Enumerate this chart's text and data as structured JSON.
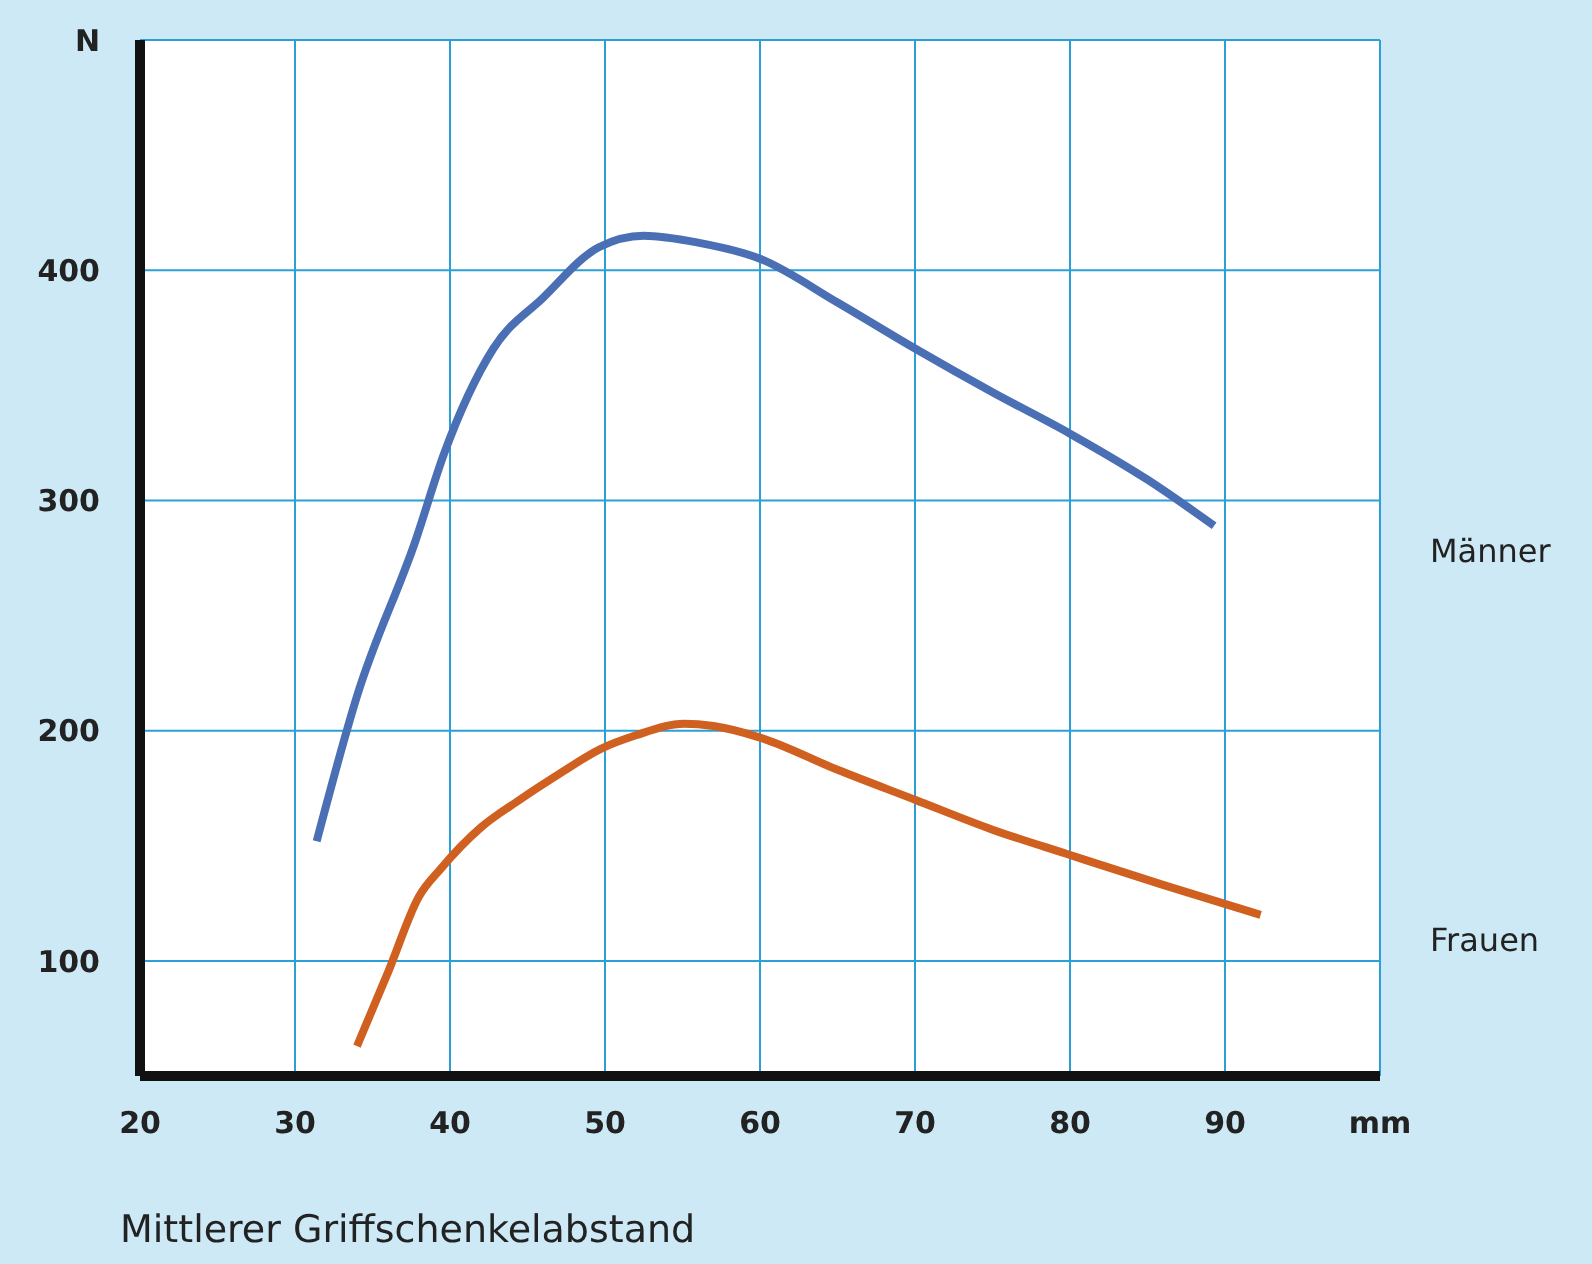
{
  "chart_data": {
    "type": "line",
    "xlabel": "Mittlerer Griffschenkelabstand",
    "xlim": [
      20,
      100
    ],
    "xticks": [
      20,
      30,
      40,
      50,
      60,
      70,
      80,
      90,
      {
        "value": 100,
        "label": "mm"
      }
    ],
    "ylim": [
      50,
      500
    ],
    "yticks": [
      100,
      200,
      300,
      400,
      {
        "value": 500,
        "label": "N"
      }
    ],
    "grid": true,
    "marker": "none",
    "line_style": "solid",
    "series": [
      {
        "name": "Männer",
        "color": "#4a6fb5",
        "x": [
          31.4,
          34,
          37.8,
          39.6,
          42.8,
          46,
          49.6,
          52.5,
          56,
          60,
          65,
          70,
          75,
          80,
          85,
          89.3
        ],
        "values": [
          152,
          215,
          283,
          320,
          366,
          388,
          410,
          415,
          412,
          405,
          386,
          366,
          347,
          329,
          309,
          289
        ]
      },
      {
        "name": "Frauen",
        "color": "#d0601f",
        "x": [
          34,
          36,
          38,
          39.4,
          42,
          44.5,
          47,
          49.7,
          52,
          55.1,
          57,
          60,
          65,
          70,
          75,
          80,
          86,
          92.3
        ],
        "values": [
          63,
          95,
          128,
          140,
          158,
          170,
          181,
          192,
          198,
          203,
          202,
          197,
          183,
          170,
          157,
          146,
          133,
          120
        ]
      }
    ]
  }
}
